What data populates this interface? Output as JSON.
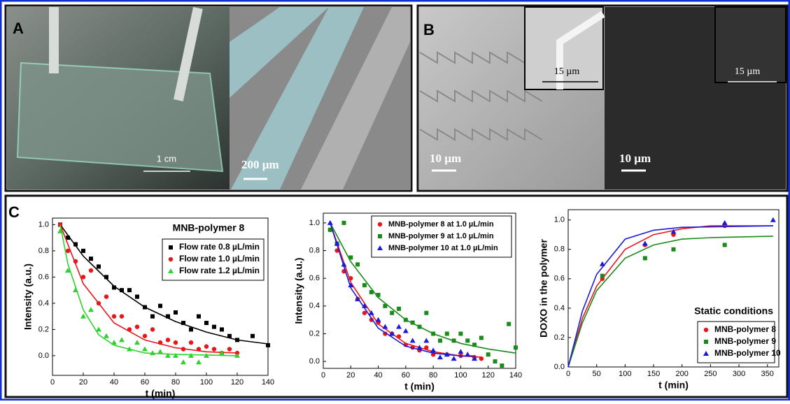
{
  "panels": {
    "a": {
      "label": "A",
      "scale_1": "1 cm",
      "scale_2": "200 µm"
    },
    "b": {
      "label": "B",
      "inset_scale_1": "15 µm",
      "inset_scale_2": "15 µm",
      "scale_1": "10 µm",
      "scale_2": "10 µm"
    },
    "c": {
      "label": "C"
    }
  },
  "chart_data": [
    {
      "type": "scatter",
      "title": "MNB-polymer 8",
      "x_label": "t (min)",
      "y_label": "Intensity (a.u.)",
      "xlim": [
        0,
        140
      ],
      "ylim": [
        -0.15,
        1.05
      ],
      "xticks": [
        0,
        20,
        40,
        60,
        80,
        100,
        120,
        140
      ],
      "yticks": [
        {
          "value": 0,
          "label": "0.0"
        },
        0.2,
        0.4,
        0.6,
        0.8,
        {
          "value": 1,
          "label": "1.0"
        }
      ],
      "legend": "upper-right",
      "series": [
        {
          "name": "Flow rate 0.8 µL/min",
          "color": "#000000",
          "marker": "square",
          "x": [
            5,
            10,
            15,
            20,
            25,
            30,
            35,
            40,
            45,
            50,
            55,
            60,
            65,
            70,
            75,
            80,
            85,
            90,
            95,
            100,
            105,
            110,
            115,
            120,
            130,
            140
          ],
          "values": [
            1.0,
            0.9,
            0.85,
            0.8,
            0.74,
            0.68,
            0.6,
            0.52,
            0.5,
            0.5,
            0.45,
            0.37,
            0.3,
            0.38,
            0.3,
            0.33,
            0.25,
            0.2,
            0.3,
            0.25,
            0.22,
            0.2,
            0.15,
            0.12,
            0.15,
            0.08
          ],
          "fit_x": [
            5,
            20,
            40,
            60,
            80,
            100,
            120,
            140
          ],
          "fit_values": [
            1.0,
            0.76,
            0.53,
            0.37,
            0.26,
            0.18,
            0.12,
            0.09
          ]
        },
        {
          "name": "Flow rate 1.0 µL/min",
          "color": "#e8161b",
          "marker": "circle",
          "x": [
            5,
            10,
            15,
            20,
            25,
            30,
            35,
            40,
            45,
            50,
            55,
            60,
            65,
            70,
            75,
            80,
            85,
            90,
            95,
            100,
            105,
            110,
            115,
            120
          ],
          "values": [
            1.0,
            0.8,
            0.72,
            0.6,
            0.65,
            0.4,
            0.45,
            0.3,
            0.3,
            0.2,
            0.22,
            0.15,
            0.2,
            0.1,
            0.12,
            0.1,
            0.05,
            0.1,
            0.05,
            0.07,
            0.05,
            0.02,
            0.05,
            0.02
          ],
          "fit_x": [
            5,
            20,
            40,
            60,
            80,
            100,
            120
          ],
          "fit_values": [
            1.0,
            0.55,
            0.25,
            0.12,
            0.06,
            0.03,
            0.02
          ]
        },
        {
          "name": "Flow rate 1.2 µL/min",
          "color": "#2fd12f",
          "marker": "triangle",
          "x": [
            5,
            10,
            15,
            20,
            25,
            30,
            35,
            40,
            45,
            50,
            55,
            60,
            65,
            70,
            75,
            80,
            85,
            90,
            95,
            100,
            110,
            120
          ],
          "values": [
            0.95,
            0.65,
            0.5,
            0.3,
            0.35,
            0.2,
            0.15,
            0.1,
            0.12,
            0.05,
            0.1,
            0.05,
            0.02,
            0.03,
            0.0,
            0.0,
            -0.05,
            0.0,
            -0.05,
            0.0,
            0.02,
            0.0
          ],
          "fit_x": [
            5,
            10,
            20,
            30,
            40,
            60,
            80,
            120
          ],
          "fit_values": [
            1.0,
            0.7,
            0.35,
            0.16,
            0.08,
            0.02,
            0.01,
            0.0
          ]
        }
      ]
    },
    {
      "type": "scatter",
      "x_label": "t (min)",
      "y_label": "Intensity (a.u.)",
      "xlim": [
        0,
        140
      ],
      "ylim": [
        -0.05,
        1.07
      ],
      "xticks": [
        0,
        20,
        40,
        60,
        80,
        100,
        120,
        140
      ],
      "yticks": [
        {
          "value": 0,
          "label": "0.0"
        },
        0.2,
        0.4,
        0.6,
        0.8,
        {
          "value": 1,
          "label": "1.0"
        }
      ],
      "legend": "upper-right",
      "series": [
        {
          "name": "MNB-polymer 8 at 1.0 µL/min",
          "color": "#e8161b",
          "marker": "circle",
          "x": [
            5,
            10,
            15,
            20,
            25,
            30,
            35,
            40,
            45,
            50,
            55,
            60,
            65,
            70,
            75,
            80,
            90,
            100,
            110,
            115
          ],
          "values": [
            0.95,
            0.8,
            0.65,
            0.6,
            0.45,
            0.35,
            0.3,
            0.28,
            0.2,
            0.2,
            0.18,
            0.12,
            0.1,
            0.08,
            0.1,
            0.05,
            0.05,
            0.04,
            0.03,
            0.02
          ],
          "fit_x": [
            5,
            20,
            40,
            60,
            80,
            100,
            115
          ],
          "fit_values": [
            1.0,
            0.57,
            0.27,
            0.13,
            0.07,
            0.04,
            0.03
          ]
        },
        {
          "name": "MNB-polymer 9 at 1.0 µL/min",
          "color": "#1a8a1a",
          "marker": "square",
          "x": [
            5,
            10,
            15,
            20,
            25,
            30,
            35,
            40,
            45,
            50,
            55,
            60,
            65,
            70,
            75,
            80,
            85,
            90,
            95,
            100,
            105,
            110,
            115,
            120,
            125,
            130,
            135,
            140
          ],
          "values": [
            0.95,
            0.85,
            1.0,
            0.75,
            0.7,
            0.55,
            0.5,
            0.48,
            0.4,
            0.35,
            0.38,
            0.3,
            0.28,
            0.25,
            0.35,
            0.2,
            0.15,
            0.2,
            0.15,
            0.2,
            0.15,
            0.12,
            0.17,
            0.05,
            0.0,
            -0.03,
            0.27,
            0.1
          ],
          "fit_x": [
            5,
            20,
            40,
            60,
            80,
            100,
            120,
            140
          ],
          "fit_values": [
            1.0,
            0.72,
            0.46,
            0.3,
            0.2,
            0.13,
            0.09,
            0.06
          ]
        },
        {
          "name": "MNB-polymer 10 at 1.0 µL/min",
          "color": "#1a1ad8",
          "marker": "triangle",
          "x": [
            5,
            10,
            15,
            20,
            25,
            30,
            35,
            40,
            45,
            50,
            55,
            60,
            65,
            70,
            75,
            80,
            85,
            90,
            95,
            100,
            105,
            110
          ],
          "values": [
            1.0,
            0.85,
            0.7,
            0.55,
            0.45,
            0.4,
            0.35,
            0.3,
            0.25,
            0.2,
            0.25,
            0.22,
            0.15,
            0.1,
            0.15,
            0.08,
            0.03,
            0.05,
            0.02,
            0.07,
            0.05,
            0.02
          ],
          "fit_x": [
            5,
            20,
            40,
            60,
            80,
            100,
            110
          ],
          "fit_values": [
            1.0,
            0.53,
            0.24,
            0.11,
            0.06,
            0.04,
            0.04
          ]
        }
      ]
    },
    {
      "type": "scatter",
      "title": "Static conditions",
      "x_label": "t (min)",
      "y_label": "DOXO in the polymer",
      "xlim": [
        0,
        370
      ],
      "ylim": [
        0,
        1.07
      ],
      "xticks": [
        0,
        50,
        100,
        150,
        200,
        250,
        300,
        350
      ],
      "yticks": [
        {
          "value": 0,
          "label": "0.0"
        },
        0.2,
        0.4,
        0.6,
        0.8,
        {
          "value": 1,
          "label": "1.0"
        }
      ],
      "legend": "lower-right",
      "series": [
        {
          "name": "MNB-polymer 8",
          "color": "#e8161b",
          "marker": "circle",
          "x": [
            60,
            135,
            185,
            275
          ],
          "values": [
            0.6,
            0.83,
            0.9,
            0.96
          ],
          "fit_x": [
            0,
            25,
            50,
            100,
            150,
            200,
            250,
            360
          ],
          "fit_values": [
            0,
            0.33,
            0.55,
            0.8,
            0.9,
            0.94,
            0.96,
            0.96
          ]
        },
        {
          "name": "MNB-polymer 9",
          "color": "#1a8a1a",
          "marker": "square",
          "x": [
            60,
            135,
            185,
            275
          ],
          "values": [
            0.62,
            0.74,
            0.8,
            0.83
          ],
          "fit_x": [
            0,
            25,
            50,
            100,
            150,
            200,
            250,
            360
          ],
          "fit_values": [
            0,
            0.3,
            0.52,
            0.74,
            0.83,
            0.87,
            0.88,
            0.89
          ]
        },
        {
          "name": "MNB-polymer 10",
          "color": "#1a1ad8",
          "marker": "triangle",
          "x": [
            60,
            135,
            185,
            275,
            360
          ],
          "values": [
            0.7,
            0.84,
            0.92,
            0.98,
            1.0
          ],
          "fit_x": [
            0,
            25,
            50,
            100,
            150,
            200,
            360
          ],
          "fit_values": [
            0,
            0.38,
            0.63,
            0.87,
            0.93,
            0.95,
            0.96
          ]
        }
      ]
    }
  ]
}
